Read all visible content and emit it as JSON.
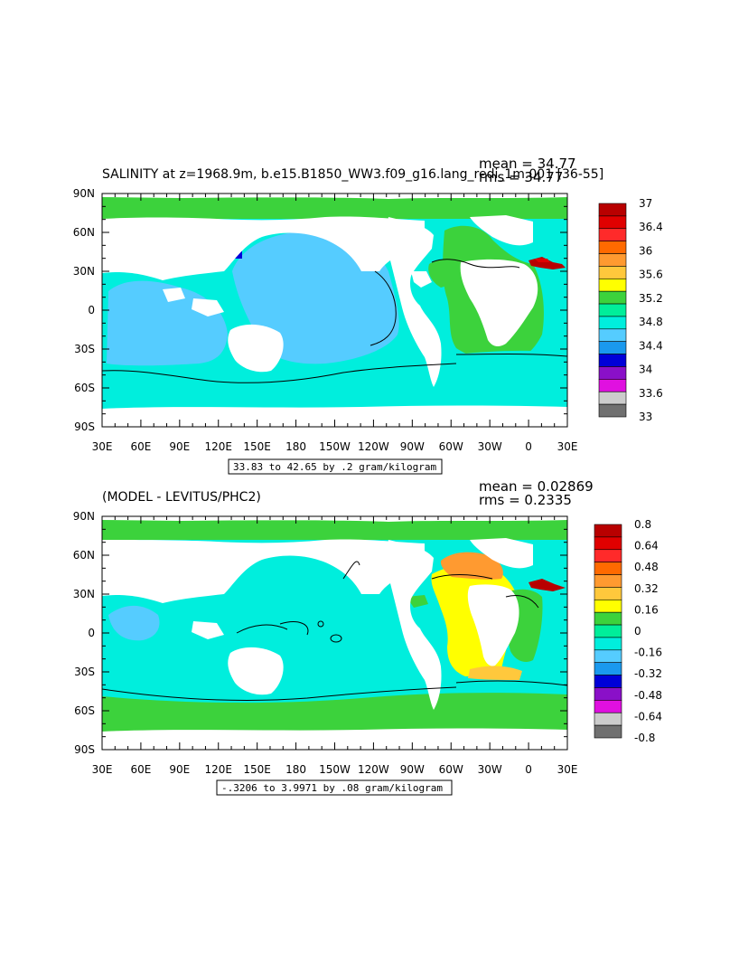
{
  "chart_data": [
    {
      "type": "heatmap",
      "title": "SALINITY at z=1968.9m, b.e15.B1850_WW3.f09_g16.lang_redi_1m.001 [36-55]",
      "mean_label": "mean = 34.77",
      "rms_label": "rms = 34.77",
      "range_label": "33.83 to 42.65 by .2 gram/kilogram",
      "xticks": [
        "30E",
        "60E",
        "90E",
        "120E",
        "150E",
        "180",
        "150W",
        "120W",
        "90W",
        "60W",
        "30W",
        "0",
        "30E"
      ],
      "yticks": [
        "90N",
        "60N",
        "30N",
        "0",
        "30S",
        "60S",
        "90S"
      ],
      "colorbar": {
        "labels": [
          "37",
          "36.4",
          "36",
          "35.6",
          "35.2",
          "34.8",
          "34.4",
          "34",
          "33.6",
          "33"
        ],
        "colors": [
          "#b80000",
          "#e00000",
          "#ff2a2a",
          "#ff6a00",
          "#ff9a30",
          "#ffc83c",
          "#ffff00",
          "#3cd23c",
          "#00ee9a",
          "#00eedd",
          "#55ccff",
          "#1a99ee",
          "#0000d8",
          "#8a10c8",
          "#e010e0",
          "#cccccc",
          "#707070"
        ]
      },
      "regions": {
        "ocean_main": "34.8",
        "pacific": "34.6",
        "atlantic": "35.0",
        "arctic": "35.0",
        "mediterranean_outflow": "36.8"
      }
    },
    {
      "type": "heatmap",
      "title": "(MODEL - LEVITUS/PHC2)",
      "mean_label": "mean = 0.02869",
      "rms_label": "rms = 0.2335",
      "range_label": "-.3206 to 3.9971 by .08 gram/kilogram",
      "xticks": [
        "30E",
        "60E",
        "90E",
        "120E",
        "150E",
        "180",
        "150W",
        "120W",
        "90W",
        "60W",
        "30W",
        "0",
        "30E"
      ],
      "yticks": [
        "90N",
        "60N",
        "30N",
        "0",
        "30S",
        "60S",
        "90S"
      ],
      "colorbar": {
        "labels": [
          "0.8",
          "0.64",
          "0.48",
          "0.32",
          "0.16",
          "0",
          "-0.16",
          "-0.32",
          "-0.48",
          "-0.64",
          "-0.8"
        ],
        "colors": [
          "#b80000",
          "#e00000",
          "#ff2a2a",
          "#ff6a00",
          "#ff9a30",
          "#ffc83c",
          "#ffff00",
          "#3cd23c",
          "#00ee9a",
          "#00eedd",
          "#55ccff",
          "#1a99ee",
          "#0000d8",
          "#8a10c8",
          "#e010e0",
          "#cccccc",
          "#707070"
        ]
      },
      "regions": {
        "pacific_indian": "-0.1",
        "north_atlantic": "0.3",
        "south_atlantic": "0.2",
        "southern_ocean": "0.05",
        "mediterranean_outflow": "0.8"
      }
    }
  ],
  "colors": {
    "land": "#ffffff",
    "frame": "#000000"
  }
}
